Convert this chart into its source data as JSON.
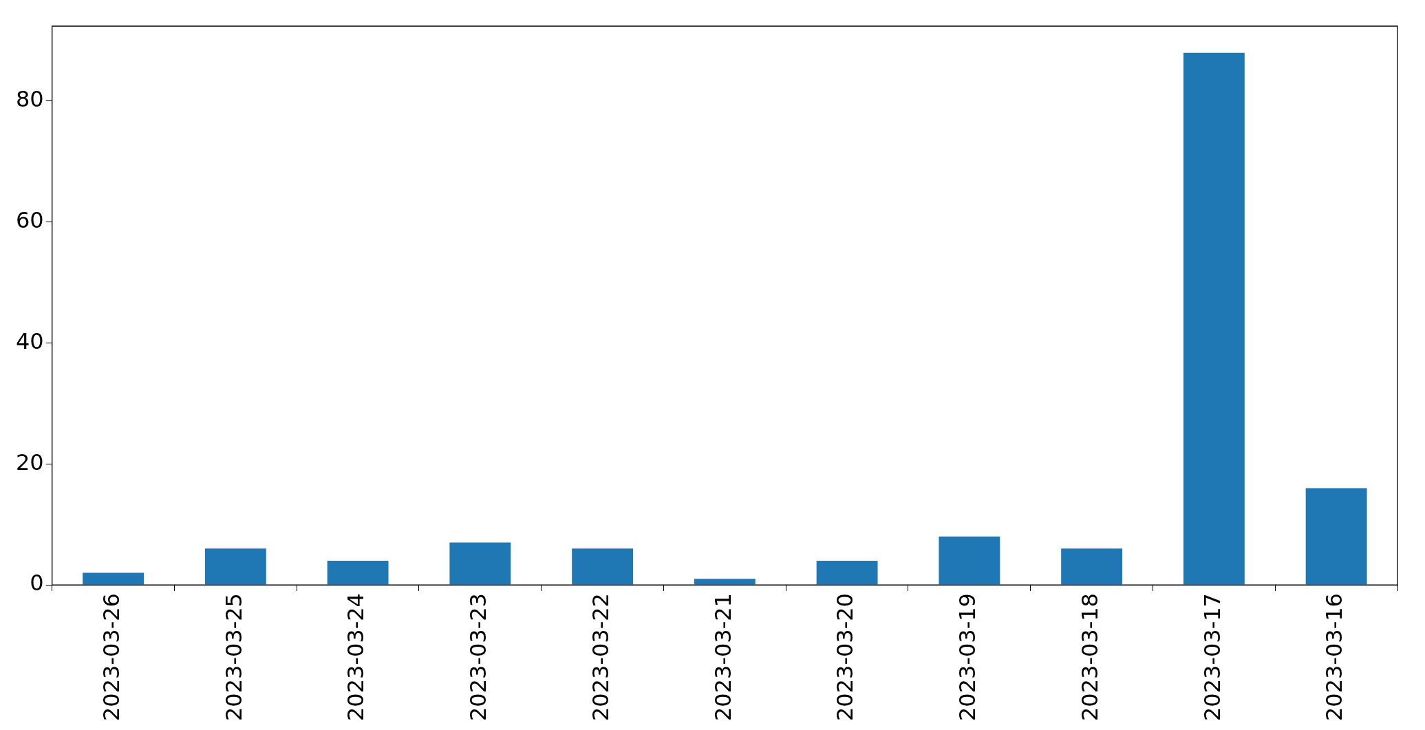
{
  "chart_data": {
    "type": "bar",
    "categories": [
      "2023-03-26",
      "2023-03-25",
      "2023-03-24",
      "2023-03-23",
      "2023-03-22",
      "2023-03-21",
      "2023-03-20",
      "2023-03-19",
      "2023-03-18",
      "2023-03-17",
      "2023-03-16"
    ],
    "values": [
      2,
      6,
      4,
      7,
      6,
      1,
      4,
      8,
      6,
      88,
      16
    ],
    "color": "#1f77b4",
    "ylim": [
      0,
      92.4
    ],
    "yticks": [
      0,
      20,
      40,
      60,
      80
    ],
    "grid": false,
    "legend": false
  }
}
